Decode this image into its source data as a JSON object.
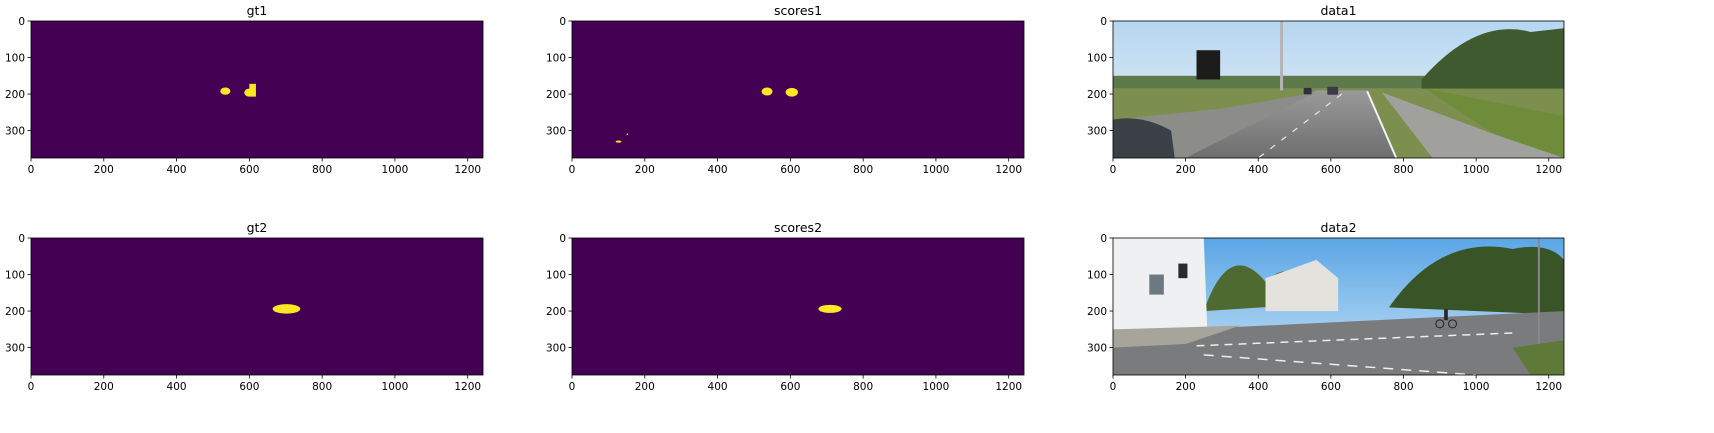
{
  "colors": {
    "background": "#440154",
    "mask": "#fde725",
    "axis": "#000000"
  },
  "chart_data": [
    {
      "type": "heatmap",
      "title": "gt1",
      "xticks": [
        0,
        200,
        400,
        600,
        800,
        1000,
        1200
      ],
      "yticks": [
        0,
        100,
        200,
        300
      ],
      "xlim": [
        0,
        1242
      ],
      "ylim": [
        375,
        0
      ],
      "values": "binary mask",
      "blobs": [
        {
          "shape": "ellipse",
          "cx": 534,
          "cy": 192,
          "rx": 14,
          "ry": 10
        },
        {
          "shape": "ellipse",
          "cx": 600,
          "cy": 196,
          "rx": 14,
          "ry": 11
        },
        {
          "shape": "rect",
          "x0": 600,
          "y0": 172,
          "x1": 618,
          "y1": 207
        }
      ]
    },
    {
      "type": "heatmap",
      "title": "scores1",
      "xticks": [
        0,
        200,
        400,
        600,
        800,
        1000,
        1200
      ],
      "yticks": [
        0,
        100,
        200,
        300
      ],
      "xlim": [
        0,
        1242
      ],
      "ylim": [
        375,
        0
      ],
      "values": "binary mask",
      "blobs": [
        {
          "shape": "ellipse",
          "cx": 536,
          "cy": 193,
          "rx": 15,
          "ry": 11
        },
        {
          "shape": "ellipse",
          "cx": 604,
          "cy": 195,
          "rx": 17,
          "ry": 12
        },
        {
          "shape": "ellipse",
          "cx": 128,
          "cy": 330,
          "rx": 8,
          "ry": 3
        },
        {
          "shape": "ellipse",
          "cx": 152,
          "cy": 310,
          "rx": 1.5,
          "ry": 1.5
        }
      ]
    },
    {
      "type": "image",
      "title": "data1",
      "xticks": [
        0,
        200,
        400,
        600,
        800,
        1000,
        1200
      ],
      "yticks": [
        0,
        100,
        200,
        300
      ],
      "xlim": [
        0,
        1242
      ],
      "ylim": [
        375,
        0
      ],
      "scene": "road"
    },
    {
      "type": "heatmap",
      "title": "gt2",
      "xticks": [
        0,
        200,
        400,
        600,
        800,
        1000,
        1200
      ],
      "yticks": [
        0,
        100,
        200,
        300
      ],
      "xlim": [
        0,
        1242
      ],
      "ylim": [
        375,
        0
      ],
      "values": "binary mask",
      "blobs": [
        {
          "shape": "ellipse",
          "cx": 702,
          "cy": 194,
          "rx": 38,
          "ry": 13
        }
      ]
    },
    {
      "type": "heatmap",
      "title": "scores2",
      "xticks": [
        0,
        200,
        400,
        600,
        800,
        1000,
        1200
      ],
      "yticks": [
        0,
        100,
        200,
        300
      ],
      "xlim": [
        0,
        1242
      ],
      "ylim": [
        375,
        0
      ],
      "values": "binary mask",
      "blobs": [
        {
          "shape": "ellipse",
          "cx": 709,
          "cy": 194,
          "rx": 32,
          "ry": 11
        }
      ]
    },
    {
      "type": "image",
      "title": "data2",
      "xticks": [
        0,
        200,
        400,
        600,
        800,
        1000,
        1200
      ],
      "yticks": [
        0,
        100,
        200,
        300
      ],
      "xlim": [
        0,
        1242
      ],
      "ylim": [
        375,
        0
      ],
      "scene": "intersection"
    }
  ]
}
